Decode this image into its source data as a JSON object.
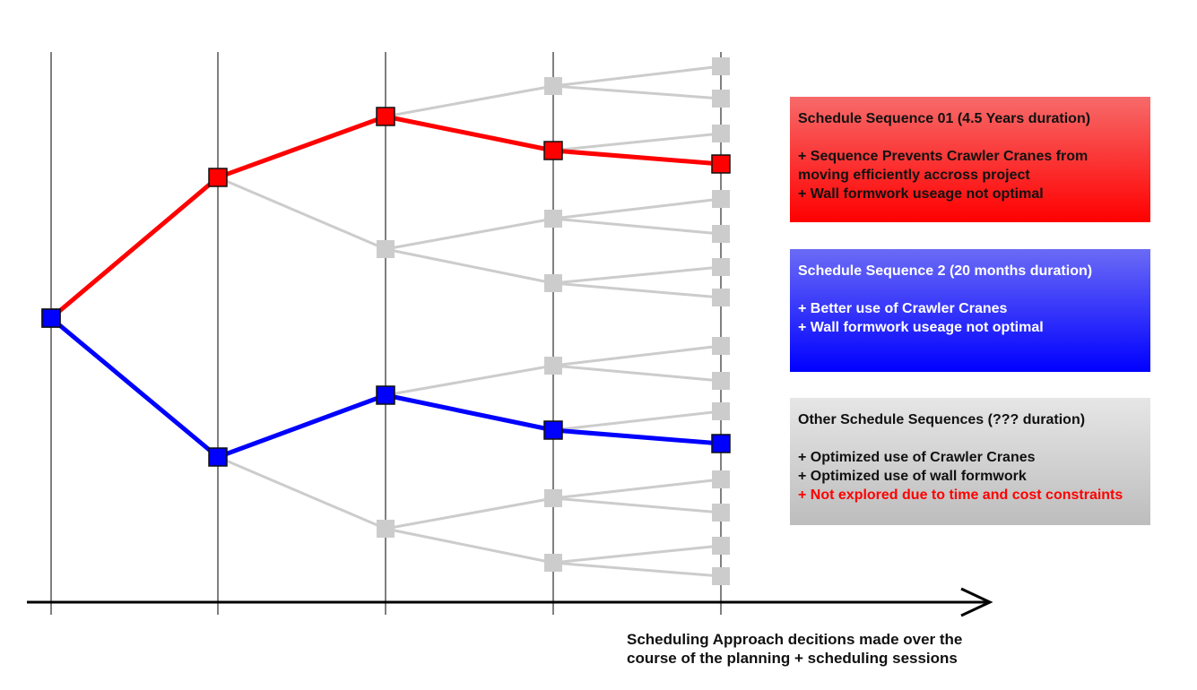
{
  "colors": {
    "red": "#ff0000",
    "blue": "#0000ff",
    "grey_branch": "#cccccc",
    "grid": "#808080",
    "axis": "#000000"
  },
  "cards": [
    {
      "title": "Schedule Sequence 01 (4.5 Years duration)",
      "lines": [
        "+ Sequence Prevents Crawler Cranes from moving efficiently accross project",
        "+ Wall formwork useage not optimal"
      ],
      "gradient_top": "#f76a6a",
      "gradient_bottom": "#ff0000"
    },
    {
      "title": "Schedule Sequence 2 (20 months duration)",
      "lines": [
        "+ Better use of Crawler Cranes",
        "+ Wall formwork useage not optimal"
      ],
      "gradient_top": "#6b6bf6",
      "gradient_bottom": "#0000ff"
    },
    {
      "title": "Other Schedule Sequences (??? duration)",
      "lines": [
        "+ Optimized use of Crawler Cranes",
        "+ Optimized use of wall formwork"
      ],
      "warning": "+ Not explored due to time and cost constraints",
      "gradient_top": "#e6e6e6",
      "gradient_bottom": "#bdbdbd"
    }
  ],
  "axis_caption": {
    "line1": "Scheduling Approach decitions made over the",
    "line2": "course of the planning + scheduling sessions"
  }
}
